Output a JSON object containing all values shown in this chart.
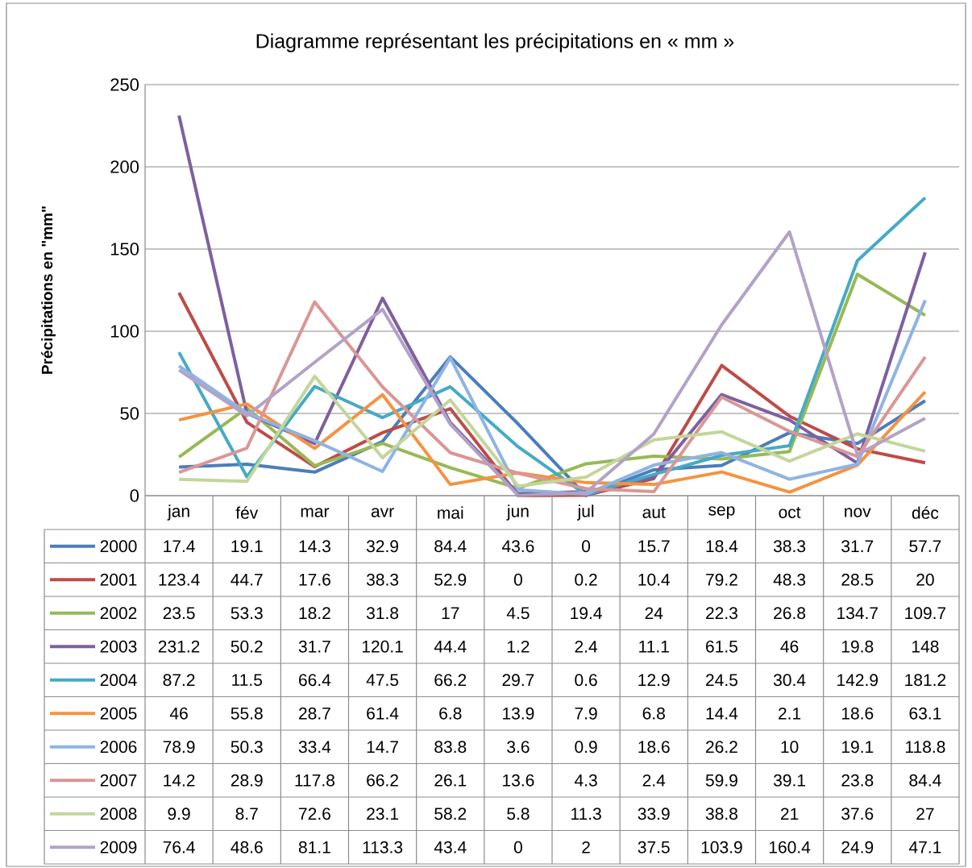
{
  "chart_data": {
    "type": "line",
    "title": "Diagramme représentant les précipitations en « mm »",
    "ylabel": "Précipitations en \"mm\"",
    "categories": [
      "jan",
      "fév",
      "mar",
      "avr",
      "mai",
      "jun",
      "jul",
      "aut",
      "sep",
      "oct",
      "nov",
      "déc"
    ],
    "series": [
      {
        "name": "2000",
        "color": "#4a7ebb",
        "values": [
          17.4,
          19.1,
          14.3,
          32.9,
          84.4,
          43.6,
          0,
          15.7,
          18.4,
          38.3,
          31.7,
          57.7
        ]
      },
      {
        "name": "2001",
        "color": "#be4b48",
        "values": [
          123.4,
          44.7,
          17.6,
          38.3,
          52.9,
          0,
          0.2,
          10.4,
          79.2,
          48.3,
          28.5,
          20
        ]
      },
      {
        "name": "2002",
        "color": "#98b954",
        "values": [
          23.5,
          53.3,
          18.2,
          31.8,
          17,
          4.5,
          19.4,
          24,
          22.3,
          26.8,
          134.7,
          109.7
        ]
      },
      {
        "name": "2003",
        "color": "#7d60a0",
        "values": [
          231.2,
          50.2,
          31.7,
          120.1,
          44.4,
          1.2,
          2.4,
          11.1,
          61.5,
          46,
          19.8,
          148
        ]
      },
      {
        "name": "2004",
        "color": "#46aac5",
        "values": [
          87.2,
          11.5,
          66.4,
          47.5,
          66.2,
          29.7,
          0.6,
          12.9,
          24.5,
          30.4,
          142.9,
          181.2
        ]
      },
      {
        "name": "2005",
        "color": "#f69240",
        "values": [
          46,
          55.8,
          28.7,
          61.4,
          6.8,
          13.9,
          7.9,
          6.8,
          14.4,
          2.1,
          18.6,
          63.1
        ]
      },
      {
        "name": "2006",
        "color": "#8eb4e3",
        "values": [
          78.9,
          50.3,
          33.4,
          14.7,
          83.8,
          3.6,
          0.9,
          18.6,
          26.2,
          10,
          19.1,
          118.8
        ]
      },
      {
        "name": "2007",
        "color": "#d99795",
        "values": [
          14.2,
          28.9,
          117.8,
          66.2,
          26.1,
          13.6,
          4.3,
          2.4,
          59.9,
          39.1,
          23.8,
          84.4
        ]
      },
      {
        "name": "2008",
        "color": "#c3d69b",
        "values": [
          9.9,
          8.7,
          72.6,
          23.1,
          58.2,
          5.8,
          11.3,
          33.9,
          38.8,
          21,
          37.6,
          27
        ]
      },
      {
        "name": "2009",
        "color": "#b3a2c7",
        "values": [
          76.4,
          48.6,
          81.1,
          113.3,
          43.4,
          0,
          2,
          37.5,
          103.9,
          160.4,
          24.9,
          47.1
        ]
      }
    ],
    "ylim": [
      0,
      250
    ],
    "yticks": [
      0,
      50,
      100,
      150,
      200,
      250
    ],
    "grid": "y",
    "data_labels": true,
    "legend": "bottom",
    "marker": "none"
  }
}
